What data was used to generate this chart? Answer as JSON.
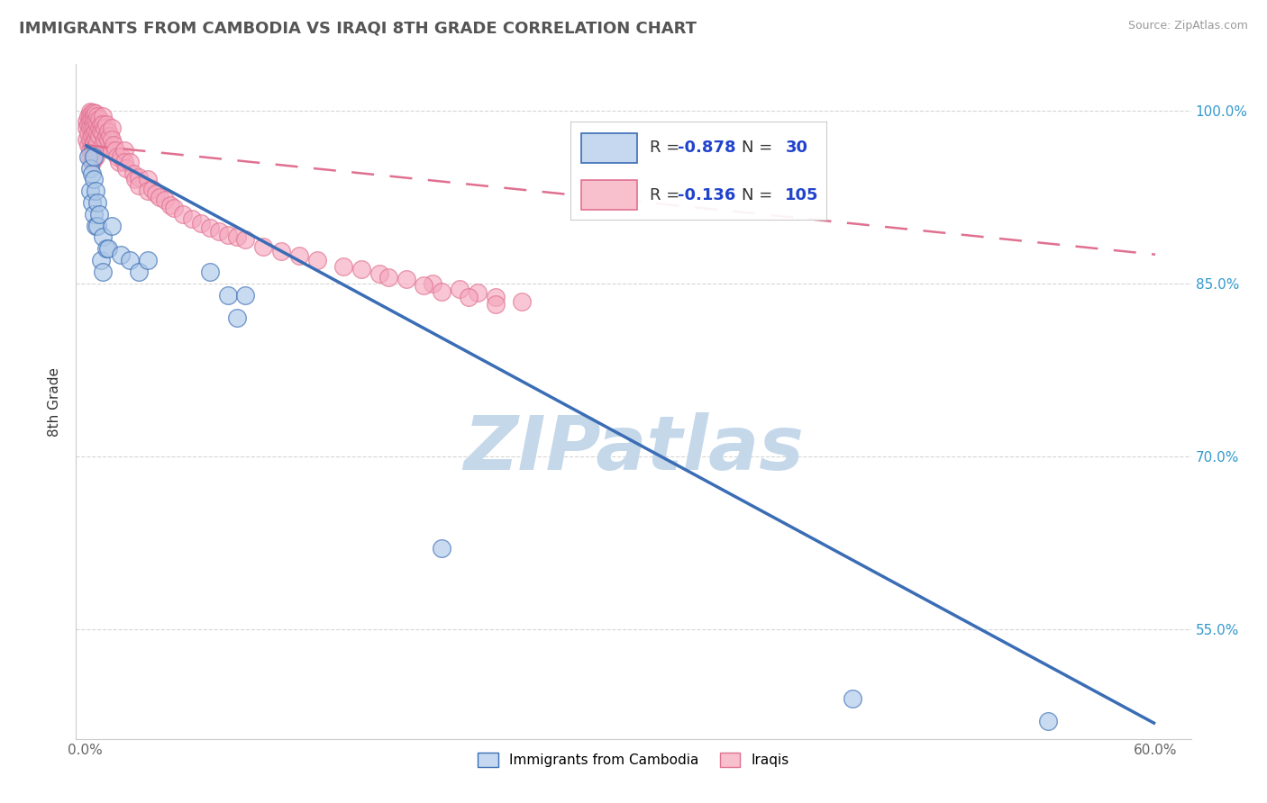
{
  "title": "IMMIGRANTS FROM CAMBODIA VS IRAQI 8TH GRADE CORRELATION CHART",
  "source": "Source: ZipAtlas.com",
  "ylabel": "8th Grade",
  "xlim": [
    -0.005,
    0.62
  ],
  "ylim": [
    0.455,
    1.04
  ],
  "xtick_vals": [
    0.0,
    0.1,
    0.2,
    0.3,
    0.4,
    0.5,
    0.6
  ],
  "xticklabels": [
    "0.0%",
    "",
    "",
    "",
    "",
    "",
    "60.0%"
  ],
  "ytick_vals": [
    0.55,
    0.7,
    0.85,
    1.0
  ],
  "yticklabels": [
    "55.0%",
    "70.0%",
    "85.0%",
    "100.0%"
  ],
  "cambodia_color": "#adc8e8",
  "iraqi_color": "#f5a8be",
  "cambodia_line_color": "#3a6db5",
  "iraqi_line_color": "#e07090",
  "cambodia_line_y0": 0.97,
  "cambodia_line_y1": 0.468,
  "iraqi_line_y0": 0.97,
  "iraqi_line_y1": 0.875,
  "watermark": "ZIPatlas",
  "watermark_color": "#c5d8ea",
  "legend_label1": "Immigrants from Cambodia",
  "legend_label2": "Iraqis",
  "background_color": "#ffffff",
  "grid_color": "#cccccc",
  "title_color": "#555555",
  "title_fontsize": 13,
  "cambodia_x": [
    0.002,
    0.003,
    0.003,
    0.004,
    0.004,
    0.005,
    0.005,
    0.005,
    0.006,
    0.006,
    0.007,
    0.007,
    0.008,
    0.009,
    0.01,
    0.01,
    0.012,
    0.013,
    0.015,
    0.02,
    0.025,
    0.03,
    0.035,
    0.07,
    0.08,
    0.085,
    0.09,
    0.2,
    0.43,
    0.54
  ],
  "cambodia_y": [
    0.96,
    0.95,
    0.93,
    0.945,
    0.92,
    0.96,
    0.94,
    0.91,
    0.93,
    0.9,
    0.92,
    0.9,
    0.91,
    0.87,
    0.89,
    0.86,
    0.88,
    0.88,
    0.9,
    0.875,
    0.87,
    0.86,
    0.87,
    0.86,
    0.84,
    0.82,
    0.84,
    0.62,
    0.49,
    0.47
  ],
  "iraqi_x": [
    0.001,
    0.001,
    0.001,
    0.002,
    0.002,
    0.002,
    0.002,
    0.003,
    0.003,
    0.003,
    0.003,
    0.003,
    0.003,
    0.003,
    0.004,
    0.004,
    0.004,
    0.004,
    0.004,
    0.004,
    0.004,
    0.005,
    0.005,
    0.005,
    0.005,
    0.005,
    0.005,
    0.005,
    0.005,
    0.006,
    0.006,
    0.006,
    0.006,
    0.006,
    0.006,
    0.007,
    0.007,
    0.007,
    0.007,
    0.008,
    0.008,
    0.008,
    0.009,
    0.009,
    0.01,
    0.01,
    0.01,
    0.01,
    0.011,
    0.011,
    0.012,
    0.012,
    0.013,
    0.013,
    0.014,
    0.015,
    0.015,
    0.015,
    0.016,
    0.017,
    0.018,
    0.019,
    0.02,
    0.022,
    0.022,
    0.023,
    0.025,
    0.027,
    0.028,
    0.03,
    0.03,
    0.035,
    0.035,
    0.038,
    0.04,
    0.042,
    0.045,
    0.048,
    0.05,
    0.055,
    0.06,
    0.065,
    0.07,
    0.075,
    0.08,
    0.085,
    0.09,
    0.1,
    0.11,
    0.12,
    0.13,
    0.145,
    0.155,
    0.165,
    0.18,
    0.195,
    0.21,
    0.22,
    0.23,
    0.245,
    0.17,
    0.19,
    0.2,
    0.215,
    0.23
  ],
  "iraqi_y": [
    0.99,
    0.985,
    0.975,
    0.995,
    0.988,
    0.98,
    0.97,
    0.999,
    0.995,
    0.99,
    0.985,
    0.975,
    0.965,
    0.96,
    0.998,
    0.993,
    0.985,
    0.978,
    0.97,
    0.963,
    0.955,
    0.998,
    0.995,
    0.99,
    0.985,
    0.98,
    0.972,
    0.965,
    0.958,
    0.997,
    0.99,
    0.982,
    0.975,
    0.968,
    0.96,
    0.995,
    0.988,
    0.98,
    0.972,
    0.993,
    0.985,
    0.978,
    0.988,
    0.982,
    0.995,
    0.988,
    0.98,
    0.97,
    0.985,
    0.975,
    0.988,
    0.978,
    0.982,
    0.975,
    0.978,
    0.985,
    0.975,
    0.965,
    0.97,
    0.965,
    0.96,
    0.955,
    0.96,
    0.965,
    0.955,
    0.95,
    0.955,
    0.945,
    0.94,
    0.942,
    0.935,
    0.94,
    0.93,
    0.932,
    0.928,
    0.925,
    0.922,
    0.918,
    0.915,
    0.91,
    0.906,
    0.902,
    0.898,
    0.895,
    0.892,
    0.89,
    0.888,
    0.882,
    0.878,
    0.874,
    0.87,
    0.865,
    0.862,
    0.858,
    0.854,
    0.85,
    0.845,
    0.842,
    0.838,
    0.834,
    0.855,
    0.848,
    0.843,
    0.838,
    0.832
  ]
}
